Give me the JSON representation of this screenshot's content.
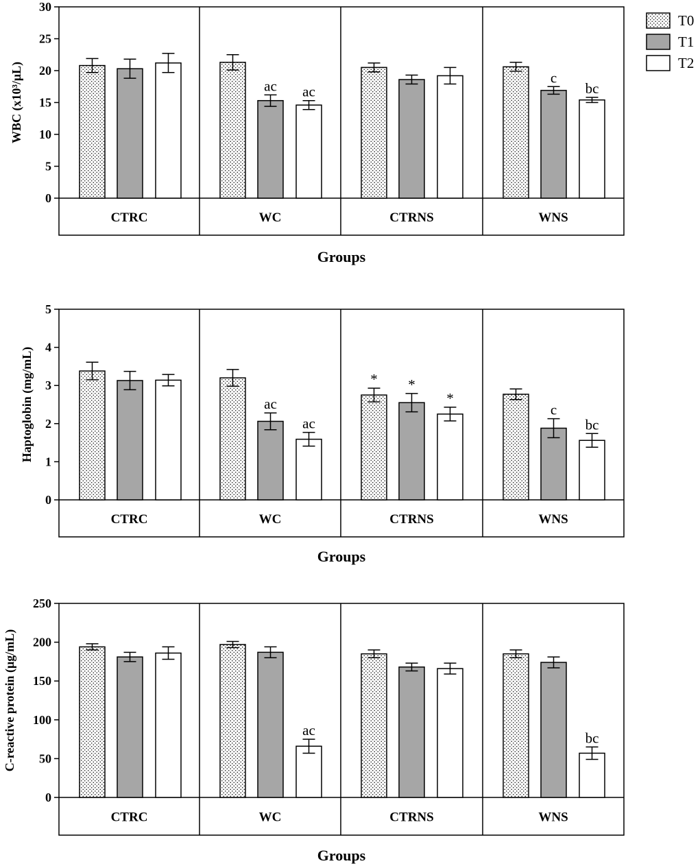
{
  "figure": {
    "legend": [
      {
        "name": "T0",
        "pattern": "dots",
        "color": "#ffffff"
      },
      {
        "name": "T1",
        "pattern": "solid",
        "color": "#a6a6a6"
      },
      {
        "name": "T2",
        "pattern": "solid",
        "color": "#ffffff"
      }
    ]
  },
  "chart_data": [
    {
      "type": "bar",
      "title": "",
      "ylabel": "WBC (x10³/μL)",
      "xlabel": "Groups",
      "ylim": [
        0,
        30
      ],
      "yticks": [
        0,
        5,
        10,
        15,
        20,
        25,
        30
      ],
      "categories": [
        "CTRC",
        "WC",
        "CTRNS",
        "WNS"
      ],
      "series": [
        {
          "name": "T0",
          "values": [
            20.8,
            21.3,
            20.5,
            20.6
          ],
          "errors": [
            1.1,
            1.2,
            0.7,
            0.7
          ],
          "annotations": [
            "",
            "",
            "",
            ""
          ]
        },
        {
          "name": "T1",
          "values": [
            20.3,
            15.3,
            18.6,
            16.9
          ],
          "errors": [
            1.5,
            0.9,
            0.7,
            0.6
          ],
          "annotations": [
            "",
            "ac",
            "",
            "c"
          ]
        },
        {
          "name": "T2",
          "values": [
            21.2,
            14.6,
            19.2,
            15.4
          ],
          "errors": [
            1.5,
            0.7,
            1.3,
            0.4
          ],
          "annotations": [
            "",
            "ac",
            "",
            "bc"
          ]
        }
      ]
    },
    {
      "type": "bar",
      "title": "",
      "ylabel": "Haptoglobin (mg/mL)",
      "xlabel": "Groups",
      "ylim": [
        0,
        5
      ],
      "yticks": [
        0,
        1,
        2,
        3,
        4,
        5
      ],
      "categories": [
        "CTRC",
        "WC",
        "CTRNS",
        "WNS"
      ],
      "series": [
        {
          "name": "T0",
          "values": [
            3.38,
            3.2,
            2.75,
            2.77
          ],
          "errors": [
            0.23,
            0.22,
            0.18,
            0.14
          ],
          "annotations": [
            "",
            "",
            "*",
            ""
          ]
        },
        {
          "name": "T1",
          "values": [
            3.13,
            2.06,
            2.55,
            1.88
          ],
          "errors": [
            0.24,
            0.22,
            0.24,
            0.25
          ],
          "annotations": [
            "",
            "ac",
            "*",
            "c"
          ]
        },
        {
          "name": "T2",
          "values": [
            3.14,
            1.59,
            2.25,
            1.56
          ],
          "errors": [
            0.15,
            0.18,
            0.18,
            0.18
          ],
          "annotations": [
            "",
            "ac",
            "*",
            "bc"
          ]
        }
      ]
    },
    {
      "type": "bar",
      "title": "",
      "ylabel": "C-reactive protein (μg/mL)",
      "xlabel": "Groups",
      "ylim": [
        0,
        250
      ],
      "yticks": [
        0,
        50,
        100,
        150,
        200,
        250
      ],
      "categories": [
        "CTRC",
        "WC",
        "CTRNS",
        "WNS"
      ],
      "series": [
        {
          "name": "T0",
          "values": [
            194,
            197,
            185,
            185
          ],
          "errors": [
            4,
            4,
            5,
            5
          ],
          "annotations": [
            "",
            "",
            "",
            ""
          ]
        },
        {
          "name": "T1",
          "values": [
            181,
            187,
            168,
            174
          ],
          "errors": [
            6,
            7,
            5,
            7
          ],
          "annotations": [
            "",
            "",
            "",
            ""
          ]
        },
        {
          "name": "T2",
          "values": [
            186,
            66,
            166,
            57
          ],
          "errors": [
            8,
            9,
            7,
            8
          ],
          "annotations": [
            "",
            "ac",
            "",
            "bc"
          ]
        }
      ]
    }
  ]
}
